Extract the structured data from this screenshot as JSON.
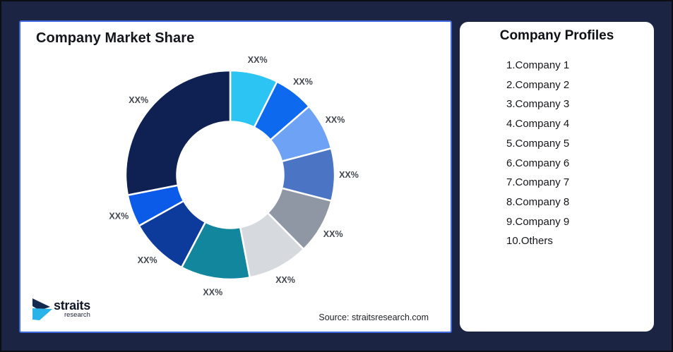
{
  "frame": {
    "background_color": "#1B2442",
    "border_color": "#0D0E14"
  },
  "chart_card": {
    "title": "Company Market Share",
    "source_note": "Source: straitsresearch.com",
    "accent_border_color": "#4169E1",
    "logo": {
      "brand": "straits",
      "sub": "research",
      "icon_navy": "#13294D",
      "icon_cyan": "#29B3E8"
    }
  },
  "profiles_card": {
    "title": "Company Profiles",
    "items": [
      "1.Company 1",
      "2.Company 2",
      "3.Company 3",
      "4.Company 4",
      "5.Company 5",
      "6.Company 6",
      "7.Company 7",
      "8.Company 8",
      "9.Company 9",
      "10.Others"
    ]
  },
  "chart_data": {
    "type": "pie",
    "subtype": "donut",
    "title": "Company Market Share",
    "start_angle_deg": 0,
    "direction": "clockwise",
    "inner_radius_ratio": 0.51,
    "label_all_slices": "XX%",
    "gap_color": "#FFFFFF",
    "legend_position": "separate right card (Company Profiles)",
    "source": "Source: straitsresearch.com",
    "segments": [
      {
        "name": "Company 1",
        "label": "XX%",
        "value_pct_est": 7.4,
        "color": "#2BC4F3"
      },
      {
        "name": "Company 2",
        "label": "XX%",
        "value_pct_est": 6.2,
        "color": "#0D6AEF"
      },
      {
        "name": "Company 3",
        "label": "XX%",
        "value_pct_est": 7.3,
        "color": "#6EA2F4"
      },
      {
        "name": "Company 4",
        "label": "XX%",
        "value_pct_est": 8.1,
        "color": "#4C74C5"
      },
      {
        "name": "Company 5",
        "label": "XX%",
        "value_pct_est": 8.6,
        "color": "#9097A4"
      },
      {
        "name": "Company 6",
        "label": "XX%",
        "value_pct_est": 9.4,
        "color": "#D6D9DE"
      },
      {
        "name": "Company 7",
        "label": "XX%",
        "value_pct_est": 10.7,
        "color": "#12869D"
      },
      {
        "name": "Company 8",
        "label": "XX%",
        "value_pct_est": 9.2,
        "color": "#0D3B9B"
      },
      {
        "name": "Company 9",
        "label": "XX%",
        "value_pct_est": 5.0,
        "color": "#0C5BE8"
      },
      {
        "name": "Others",
        "label": "XX%",
        "value_pct_est": 28.1,
        "color": "#0E2152"
      }
    ]
  }
}
